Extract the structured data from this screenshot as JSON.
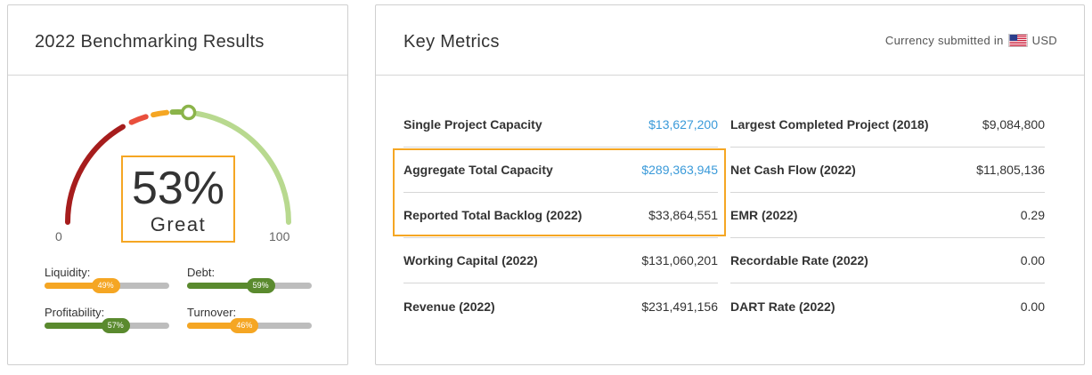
{
  "benchmark": {
    "title": "2022 Benchmarking Results",
    "score": "53%",
    "rating": "Great",
    "score_fraction": 0.53,
    "gauge_min": "0",
    "gauge_max": "100",
    "gauge_colors": [
      "#a61d1d",
      "#e94f3c",
      "#f5a623",
      "#8bb44a",
      "#b8d98f"
    ],
    "indicators": [
      {
        "label": "Liquidity:",
        "percent": "49%",
        "fraction": 0.49,
        "color": "#f5a623"
      },
      {
        "label": "Debt:",
        "percent": "59%",
        "fraction": 0.59,
        "color": "#5a8a2e"
      },
      {
        "label": "Profitability:",
        "percent": "57%",
        "fraction": 0.57,
        "color": "#5a8a2e"
      },
      {
        "label": "Turnover:",
        "percent": "46%",
        "fraction": 0.46,
        "color": "#f5a623"
      }
    ]
  },
  "metrics": {
    "title": "Key Metrics",
    "currency_prefix": "Currency submitted in",
    "currency_code": "USD",
    "left": [
      {
        "label": "Single Project Capacity",
        "value": "$13,627,200",
        "link": true
      },
      {
        "label": "Aggregate Total Capacity",
        "value": "$289,363,945",
        "link": true
      },
      {
        "label": "Reported Total Backlog (2022)",
        "value": "$33,864,551",
        "link": false
      },
      {
        "label": "Working Capital (2022)",
        "value": "$131,060,201",
        "link": false
      },
      {
        "label": "Revenue (2022)",
        "value": "$231,491,156",
        "link": false
      }
    ],
    "right": [
      {
        "label": "Largest Completed Project (2018)",
        "value": "$9,084,800"
      },
      {
        "label": "Net Cash Flow (2022)",
        "value": "$11,805,136"
      },
      {
        "label": "EMR (2022)",
        "value": "0.29"
      },
      {
        "label": "Recordable Rate (2022)",
        "value": "0.00"
      },
      {
        "label": "DART Rate (2022)",
        "value": "0.00"
      }
    ]
  }
}
